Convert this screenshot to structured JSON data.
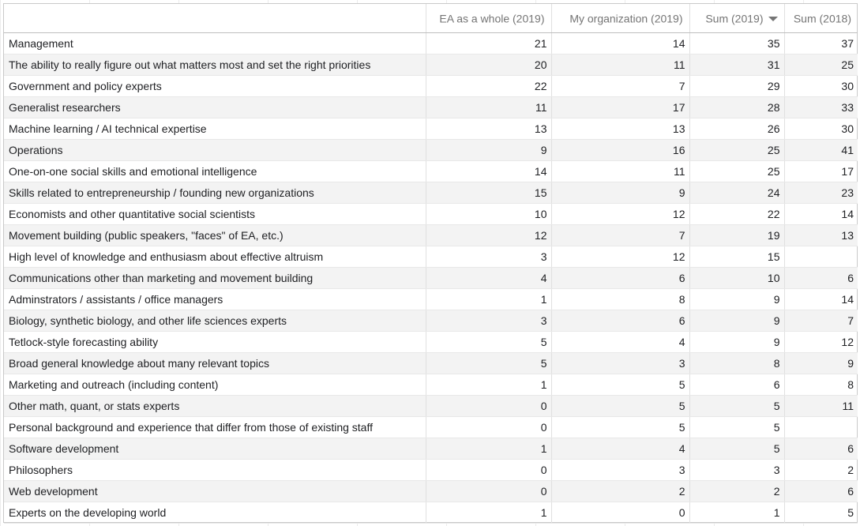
{
  "table": {
    "headers": [
      "",
      "EA as a whole (2019)",
      "My organization (2019)",
      "Sum (2019)",
      "Sum (2018)"
    ],
    "sorted_column": 3,
    "rows": [
      [
        "Management",
        "21",
        "14",
        "35",
        "37"
      ],
      [
        "The ability to really figure out what matters most and set the right priorities",
        "20",
        "11",
        "31",
        "25"
      ],
      [
        "Government and policy experts",
        "22",
        "7",
        "29",
        "30"
      ],
      [
        "Generalist researchers",
        "11",
        "17",
        "28",
        "33"
      ],
      [
        "Machine learning / AI technical expertise",
        "13",
        "13",
        "26",
        "30"
      ],
      [
        "Operations",
        "9",
        "16",
        "25",
        "41"
      ],
      [
        "One-on-one social skills and emotional intelligence",
        "14",
        "11",
        "25",
        "17"
      ],
      [
        "Skills related to entrepreneurship / founding new organizations",
        "15",
        "9",
        "24",
        "23"
      ],
      [
        "Economists and other quantitative social scientists",
        "10",
        "12",
        "22",
        "14"
      ],
      [
        "Movement building (public speakers, \"faces\" of EA, etc.)",
        "12",
        "7",
        "19",
        "13"
      ],
      [
        "High level of knowledge and enthusiasm about effective altruism",
        "3",
        "12",
        "15",
        ""
      ],
      [
        "Communications other than marketing and movement building",
        "4",
        "6",
        "10",
        "6"
      ],
      [
        "Adminstrators / assistants / office managers",
        "1",
        "8",
        "9",
        "14"
      ],
      [
        "Biology, synthetic biology, and other life sciences experts",
        "3",
        "6",
        "9",
        "7"
      ],
      [
        "Tetlock-style forecasting ability",
        "5",
        "4",
        "9",
        "12"
      ],
      [
        "Broad general knowledge about many relevant topics",
        "5",
        "3",
        "8",
        "9"
      ],
      [
        "Marketing and outreach (including content)",
        "1",
        "5",
        "6",
        "8"
      ],
      [
        "Other math, quant, or stats experts",
        "0",
        "5",
        "5",
        "11"
      ],
      [
        "Personal background and experience that differ from those of existing staff",
        "0",
        "5",
        "5",
        ""
      ],
      [
        "Software development",
        "1",
        "4",
        "5",
        "6"
      ],
      [
        "Philosophers",
        "0",
        "3",
        "3",
        "2"
      ],
      [
        "Web development",
        "0",
        "2",
        "2",
        "6"
      ],
      [
        "Experts on the developing world",
        "1",
        "0",
        "1",
        "5"
      ]
    ]
  }
}
